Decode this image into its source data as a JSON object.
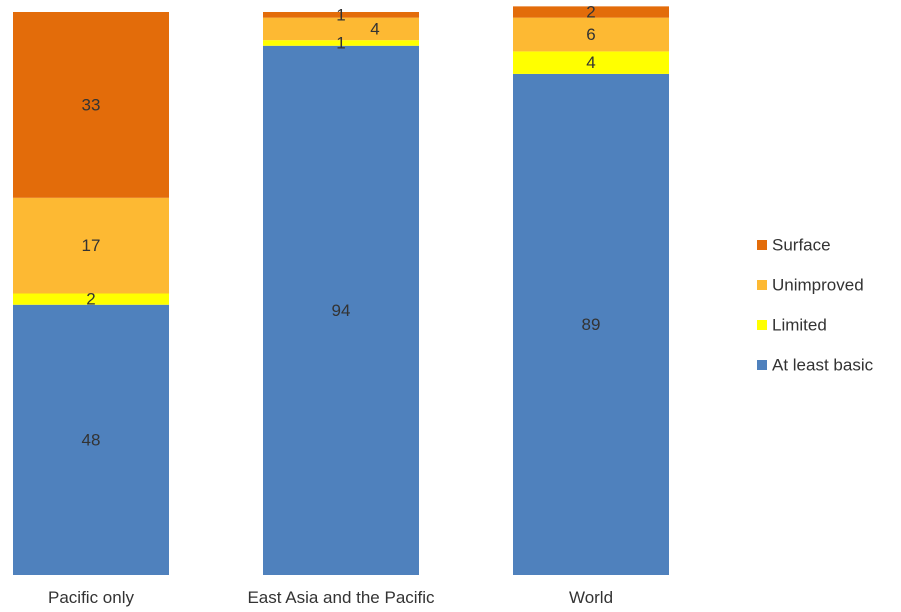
{
  "chart_data": {
    "type": "bar",
    "stacked": true,
    "categories": [
      "Pacific only",
      "East Asia and the Pacific",
      "World"
    ],
    "series": [
      {
        "name": "At least basic",
        "color": "#4F81BD",
        "values": [
          48,
          94,
          89
        ]
      },
      {
        "name": "Limited",
        "color": "#FFFF00",
        "values": [
          2,
          1,
          4
        ]
      },
      {
        "name": "Unimproved",
        "color": "#FDB933",
        "values": [
          17,
          4,
          6
        ]
      },
      {
        "name": "Surface",
        "color": "#E36C0A",
        "values": [
          33,
          1,
          2
        ]
      }
    ],
    "ylim": [
      0,
      100
    ],
    "legend_position": "right",
    "legend_order": [
      "Surface",
      "Unimproved",
      "Limited",
      "At least basic"
    ],
    "grid": false
  }
}
